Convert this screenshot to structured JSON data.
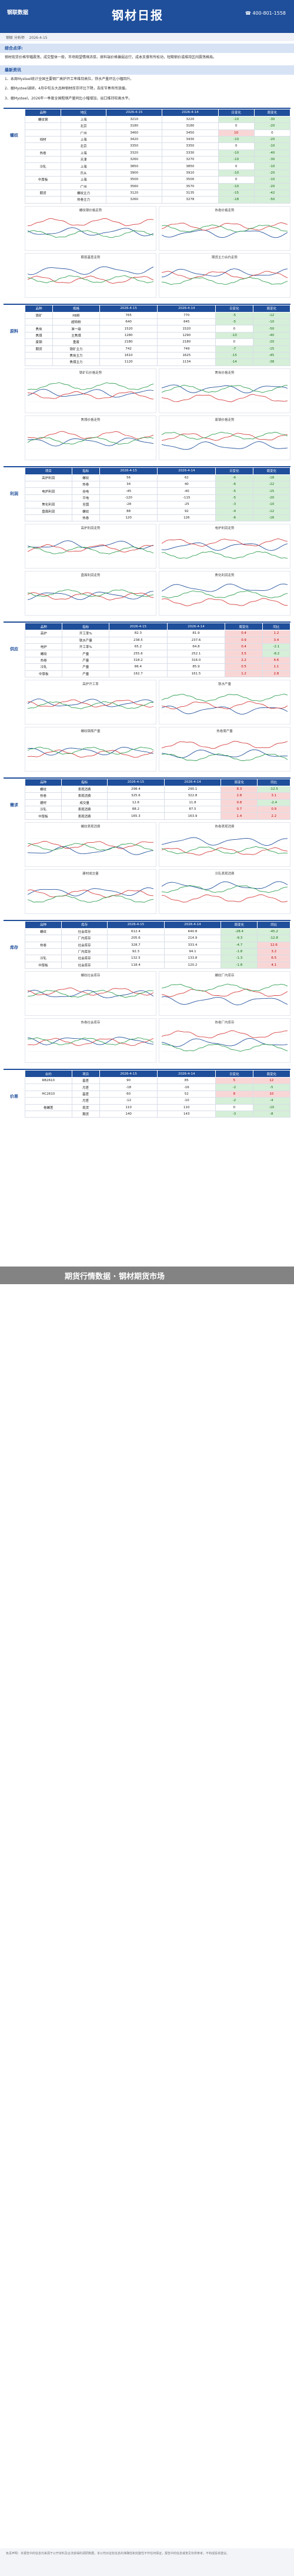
{
  "header": {
    "logo": "钢联数据",
    "title": "钢材日报",
    "hotline": "400-801-1558"
  },
  "meta": {
    "author": "钢联 分析师",
    "date": "2026-4-15"
  },
  "intro_title": "综合点评:",
  "intro_text": "钢材现货价格窄幅震荡，成交整体一般，市场观望情绪浓厚。原料端价格偏弱运行，成本支撑有所松动，短期钢价或维持区间震荡格局。",
  "news_title": "最新资讯",
  "news": [
    "1、本周Mysteel统计全国主要钢厂高炉开工率维持高位，铁水产量环比小幅回升。",
    "2、据Mysteel调研，4月中旬五大品种钢材库存环比下降，去库节奏有所放缓。",
    "3、据Mysteel，2026年一季度全国粗钢产量同比小幅增加，出口维持较高水平。"
  ],
  "blocks": [
    {
      "label": "螺纹",
      "headers": [
        "品种",
        "地区",
        "2026-4-15",
        "2026-4-14",
        "日变化",
        "周变化"
      ],
      "rows": [
        [
          "螺纹钢",
          "上海",
          "3210",
          "3220",
          "-10",
          "-30"
        ],
        [
          "",
          "北京",
          "3180",
          "3180",
          "0",
          "-20"
        ],
        [
          "",
          "广州",
          "3460",
          "3450",
          "10",
          "0"
        ],
        [
          "线材",
          "上海",
          "3420",
          "3430",
          "-10",
          "-20"
        ],
        [
          "",
          "北京",
          "3350",
          "3350",
          "0",
          "-10"
        ],
        [
          "热卷",
          "上海",
          "3320",
          "3330",
          "-10",
          "-40"
        ],
        [
          "",
          "天津",
          "3260",
          "3270",
          "-10",
          "-30"
        ],
        [
          "冷轧",
          "上海",
          "3850",
          "3850",
          "0",
          "-10"
        ],
        [
          "",
          "乐从",
          "3900",
          "3910",
          "-10",
          "-20"
        ],
        [
          "中厚板",
          "上海",
          "3500",
          "3500",
          "0",
          "-10"
        ],
        [
          "",
          "广州",
          "3560",
          "3570",
          "-10",
          "-20"
        ],
        [
          "期货",
          "螺纹主力",
          "3120",
          "3135",
          "-15",
          "-42"
        ],
        [
          "",
          "热卷主力",
          "3260",
          "3278",
          "-18",
          "-50"
        ]
      ],
      "charts": [
        "螺纹钢价格走势",
        "热卷价格走势",
        "期现基差走势",
        "期货主力合约走势"
      ]
    },
    {
      "label": "原料",
      "headers": [
        "品种",
        "规格",
        "2026-4-15",
        "2026-4-14",
        "日变化",
        "周变化"
      ],
      "rows": [
        [
          "铁矿",
          "PB粉",
          "765",
          "770",
          "-5",
          "-12"
        ],
        [
          "",
          "超特粉",
          "640",
          "645",
          "-5",
          "-10"
        ],
        [
          "焦炭",
          "准一级",
          "1520",
          "1520",
          "0",
          "-50"
        ],
        [
          "焦煤",
          "主焦煤",
          "1280",
          "1290",
          "-10",
          "-40"
        ],
        [
          "废钢",
          "重废",
          "2180",
          "2180",
          "0",
          "-20"
        ],
        [
          "期货",
          "铁矿主力",
          "742",
          "749",
          "-7",
          "-15"
        ],
        [
          "",
          "焦炭主力",
          "1610",
          "1625",
          "-15",
          "-45"
        ],
        [
          "",
          "焦煤主力",
          "1120",
          "1134",
          "-14",
          "-38"
        ]
      ],
      "charts": [
        "铁矿石价格走势",
        "焦炭价格走势",
        "焦煤价格走势",
        "废钢价格走势"
      ]
    },
    {
      "label": "利润",
      "headers": [
        "项目",
        "指标",
        "2026-4-15",
        "2026-4-14",
        "日变化",
        "周变化"
      ],
      "rows": [
        [
          "高炉利润",
          "螺纹",
          "56",
          "62",
          "-6",
          "-18"
        ],
        [
          "",
          "热卷",
          "34",
          "40",
          "-6",
          "-22"
        ],
        [
          "电炉利润",
          "谷电",
          "-45",
          "-40",
          "-5",
          "-15"
        ],
        [
          "",
          "平电",
          "-120",
          "-115",
          "-5",
          "-20"
        ],
        [
          "焦化利润",
          "全国",
          "-28",
          "-25",
          "-3",
          "-10"
        ],
        [
          "盘面利润",
          "螺纹",
          "88",
          "92",
          "-4",
          "-12"
        ],
        [
          "",
          "热卷",
          "120",
          "126",
          "-6",
          "-16"
        ]
      ],
      "charts": [
        "高炉利润走势",
        "电炉利润走势",
        "盘面利润走势",
        "焦化利润走势"
      ]
    },
    {
      "label": "供应",
      "headers": [
        "品种",
        "指标",
        "2026-4-15",
        "2026-4-14",
        "周变化",
        "同比"
      ],
      "rows": [
        [
          "高炉",
          "开工率%",
          "82.3",
          "81.9",
          "0.4",
          "1.2"
        ],
        [
          "",
          "铁水产量",
          "238.5",
          "237.6",
          "0.9",
          "3.4"
        ],
        [
          "电炉",
          "开工率%",
          "65.2",
          "64.8",
          "0.4",
          "-2.1"
        ],
        [
          "螺纹",
          "产量",
          "255.6",
          "252.1",
          "3.5",
          "-8.2"
        ],
        [
          "热卷",
          "产量",
          "318.2",
          "316.0",
          "2.2",
          "4.6"
        ],
        [
          "冷轧",
          "产量",
          "86.4",
          "85.9",
          "0.5",
          "1.1"
        ],
        [
          "中厚板",
          "产量",
          "162.7",
          "161.5",
          "1.2",
          "2.8"
        ]
      ],
      "charts": [
        "高炉开工率",
        "铁水产量",
        "螺纹钢周产量",
        "热卷周产量"
      ]
    },
    {
      "label": "需求",
      "headers": [
        "品种",
        "指标",
        "2026-4-15",
        "2026-4-14",
        "周变化",
        "同比"
      ],
      "rows": [
        [
          "螺纹",
          "表观消费",
          "298.4",
          "290.1",
          "8.3",
          "-12.5"
        ],
        [
          "热卷",
          "表观消费",
          "325.6",
          "322.8",
          "2.8",
          "3.1"
        ],
        [
          "建材",
          "成交量",
          "12.6",
          "11.8",
          "0.8",
          "-2.4"
        ],
        [
          "冷轧",
          "表观消费",
          "88.2",
          "87.5",
          "0.7",
          "0.9"
        ],
        [
          "中厚板",
          "表观消费",
          "165.3",
          "163.9",
          "1.4",
          "2.2"
        ]
      ],
      "charts": [
        "螺纹表观消费",
        "热卷表观消费",
        "建材成交量",
        "冷轧表观消费"
      ]
    },
    {
      "label": "库存",
      "headers": [
        "品种",
        "库存",
        "2026-4-15",
        "2026-4-14",
        "周变化",
        "同比"
      ],
      "rows": [
        [
          "螺纹",
          "社会库存",
          "612.4",
          "640.8",
          "-28.4",
          "-45.2"
        ],
        [
          "",
          "厂内库存",
          "205.6",
          "214.9",
          "-9.3",
          "-12.8"
        ],
        [
          "热卷",
          "社会库存",
          "328.7",
          "333.4",
          "-4.7",
          "12.6"
        ],
        [
          "",
          "厂内库存",
          "92.3",
          "94.1",
          "-1.8",
          "3.2"
        ],
        [
          "冷轧",
          "社会库存",
          "132.5",
          "133.8",
          "-1.3",
          "6.5"
        ],
        [
          "中厚板",
          "社会库存",
          "118.4",
          "120.2",
          "-1.8",
          "4.1"
        ]
      ],
      "charts": [
        "螺纹社会库存",
        "螺纹厂内库存",
        "热卷社会库存",
        "热卷厂内库存"
      ]
    },
    {
      "label": "价差",
      "headers": [
        "合约",
        "项目",
        "2026-4-15",
        "2026-4-14",
        "日变化",
        "周变化"
      ],
      "rows": [
        [
          "RB2610",
          "基差",
          "90",
          "85",
          "5",
          "12"
        ],
        [
          "",
          "月差",
          "-18",
          "-16",
          "-2",
          "-5"
        ],
        [
          "HC2610",
          "基差",
          "60",
          "52",
          "8",
          "10"
        ],
        [
          "",
          "月差",
          "-12",
          "-10",
          "-2",
          "-4"
        ],
        [
          "卷螺差",
          "现货",
          "110",
          "110",
          "0",
          "-10"
        ],
        [
          "",
          "期货",
          "140",
          "143",
          "-3",
          "-8"
        ]
      ],
      "charts": []
    }
  ],
  "banner": "期货行情数据 · 钢材期货市场",
  "footer": "免责声明：本报告中的信息均来源于公开资料及合法获得的调研数据，本公司对这些信息的准确性和完整性不作任何保证，报告中的信息或意见仅供参考，不构成投资建议。"
}
